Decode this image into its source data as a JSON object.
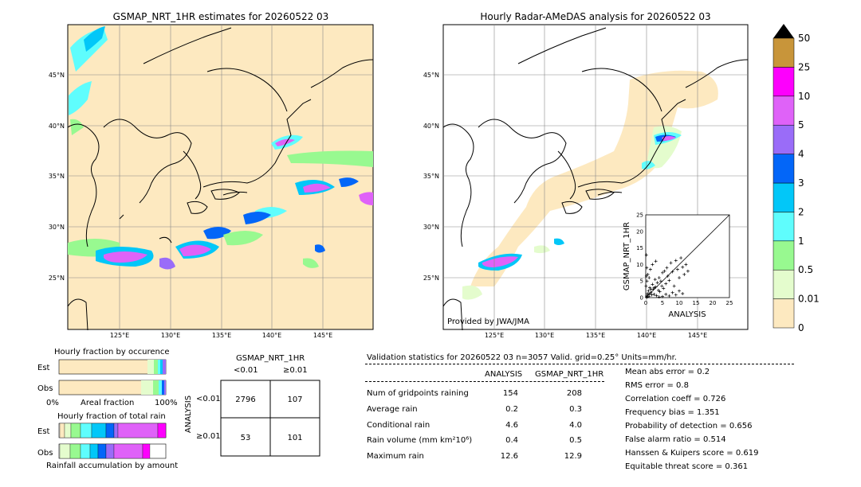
{
  "left_map": {
    "title": "GSMAP_NRT_1HR estimates for 20260522 03",
    "lat_labels": [
      "45°N",
      "40°N",
      "35°N",
      "30°N",
      "25°N"
    ],
    "lon_labels": [
      "125°E",
      "130°E",
      "135°E",
      "140°E",
      "145°E"
    ]
  },
  "right_map": {
    "title": "Hourly Radar-AMeDAS analysis for 20260522 03",
    "lat_labels": [
      "45°N",
      "40°N",
      "35°N",
      "30°N",
      "25°N"
    ],
    "lon_labels": [
      "125°E",
      "130°E",
      "135°E",
      "140°E",
      "145°E"
    ],
    "credit": "Provided by JWA/JMA"
  },
  "colorbar": {
    "labels": [
      "50",
      "25",
      "10",
      "5",
      "4",
      "3",
      "2",
      "1",
      "0.5",
      "0.01",
      "0"
    ],
    "colors": [
      "#fde9c0",
      "#e4fccd",
      "#98f990",
      "#5ffdfd",
      "#02c7f8",
      "#0366f8",
      "#9a6cf8",
      "#df62f8",
      "#fd00fd",
      "#c8953a"
    ]
  },
  "fraction_occurrence": {
    "title": "Hourly fraction by occurence",
    "rows": [
      "Est",
      "Obs"
    ],
    "axis_left": "0%",
    "axis_mid": "Areal fraction",
    "axis_right": "100%"
  },
  "fraction_total": {
    "title": "Hourly fraction of total rain",
    "rows": [
      "Est",
      "Obs"
    ],
    "footer": "Rainfall accumulation by amount"
  },
  "contingency": {
    "title": "GSMAP_NRT_1HR",
    "col_labels": [
      "<0.01",
      "≥0.01"
    ],
    "side_label": "ANALYSIS",
    "row_labels": [
      "<0.01",
      "≥0.01"
    ],
    "cells": [
      [
        "2796",
        "107"
      ],
      [
        "53",
        "101"
      ]
    ]
  },
  "validation": {
    "header": "Validation statistics for 20260522 03  n=3057 Valid. grid=0.25° Units=mm/hr.",
    "col1": "ANALYSIS",
    "col2": "GSMAP_NRT_1HR",
    "rows": [
      {
        "label": "Num of gridpoints raining",
        "a": "154",
        "g": "208"
      },
      {
        "label": "Average rain",
        "a": "0.2",
        "g": "0.3"
      },
      {
        "label": "Conditional rain",
        "a": "4.6",
        "g": "4.0"
      },
      {
        "label": "Rain volume (mm km²10⁶)",
        "a": "0.4",
        "g": "0.5"
      },
      {
        "label": "Maximum rain",
        "a": "12.6",
        "g": "12.9"
      }
    ],
    "scores": [
      "Mean abs error =    0.2",
      "RMS error =    0.8",
      "Correlation coeff =  0.726",
      "Frequency bias =  1.351",
      "Probability of detection =  0.656",
      "False alarm ratio =  0.514",
      "Hanssen & Kuipers score =  0.619",
      "Equitable threat score =  0.361"
    ]
  },
  "chart_data": {
    "type": "scatter",
    "xlabel": "ANALYSIS",
    "ylabel": "GSMAP_NRT_1HR",
    "xlim": [
      0,
      25
    ],
    "ylim": [
      0,
      25
    ],
    "ticks": [
      "0",
      "5",
      "10",
      "15",
      "20",
      "25"
    ],
    "points": [
      [
        0.3,
        0.5
      ],
      [
        0.5,
        1.2
      ],
      [
        0.8,
        2.0
      ],
      [
        1.0,
        0.4
      ],
      [
        1.2,
        3.0
      ],
      [
        1.5,
        1.5
      ],
      [
        1.8,
        0.8
      ],
      [
        2.0,
        4.0
      ],
      [
        2.2,
        2.5
      ],
      [
        2.5,
        1.0
      ],
      [
        2.8,
        5.5
      ],
      [
        3.0,
        3.2
      ],
      [
        3.2,
        0.6
      ],
      [
        3.5,
        4.5
      ],
      [
        3.8,
        2.2
      ],
      [
        4.0,
        6.0
      ],
      [
        4.2,
        1.8
      ],
      [
        4.5,
        5.0
      ],
      [
        4.8,
        3.5
      ],
      [
        5.0,
        7.5
      ],
      [
        5.3,
        2.8
      ],
      [
        5.6,
        8.0
      ],
      [
        6.0,
        4.2
      ],
      [
        6.3,
        9.0
      ],
      [
        6.6,
        6.5
      ],
      [
        7.0,
        5.2
      ],
      [
        7.5,
        10.5
      ],
      [
        8.0,
        7.8
      ],
      [
        8.5,
        3.5
      ],
      [
        9.0,
        11.2
      ],
      [
        9.5,
        8.5
      ],
      [
        10.0,
        6.0
      ],
      [
        10.5,
        12.0
      ],
      [
        11.0,
        9.2
      ],
      [
        11.5,
        7.0
      ],
      [
        12.0,
        10.0
      ],
      [
        12.6,
        8.0
      ],
      [
        0.2,
        6.5
      ],
      [
        0.4,
        5.0
      ],
      [
        0.6,
        7.0
      ],
      [
        1.0,
        6.0
      ],
      [
        0.1,
        3.5
      ],
      [
        0.3,
        9.0
      ],
      [
        1.4,
        8.5
      ],
      [
        2.0,
        10.0
      ],
      [
        0.2,
        12.9
      ],
      [
        3.0,
        11.0
      ],
      [
        5.0,
        0.3
      ],
      [
        6.0,
        1.0
      ],
      [
        7.0,
        0.5
      ],
      [
        8.0,
        1.5
      ],
      [
        9.0,
        0.8
      ],
      [
        10.0,
        2.0
      ],
      [
        11.0,
        1.2
      ],
      [
        4.0,
        0.2
      ],
      [
        0.5,
        0.2
      ],
      [
        0.2,
        0.1
      ],
      [
        1.0,
        1.0
      ],
      [
        1.5,
        2.5
      ],
      [
        2.5,
        3.0
      ]
    ]
  }
}
